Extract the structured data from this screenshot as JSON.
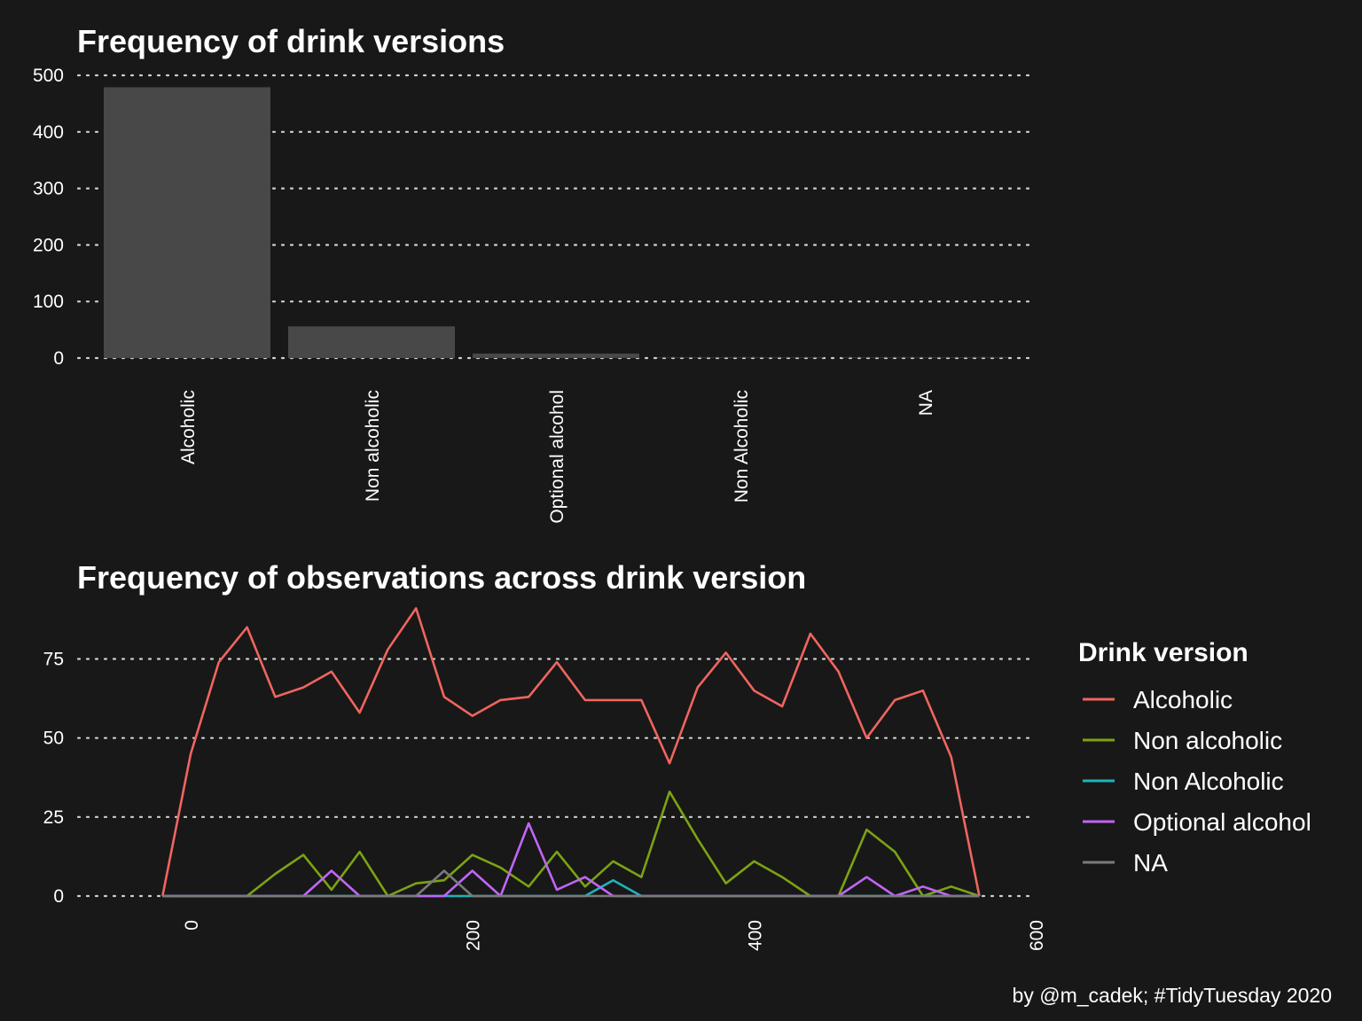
{
  "chart_data": [
    {
      "type": "bar",
      "title": "Frequency of drink versions",
      "categories": [
        "Alcoholic",
        "Non alcoholic",
        "Optional alcohol",
        "Non Alcoholic",
        "NA"
      ],
      "values": [
        479,
        56,
        8,
        1,
        1
      ],
      "ylim": [
        0,
        500
      ],
      "yticks": [
        0,
        100,
        200,
        300,
        400,
        500
      ],
      "grid": true,
      "bar_color": "#484848"
    },
    {
      "type": "line",
      "title": "Frequency of observations across drink version",
      "xlim": [
        -80,
        600
      ],
      "ylim": [
        0,
        90
      ],
      "xticks": [
        0,
        200,
        400,
        600
      ],
      "yticks": [
        0,
        25,
        50,
        75
      ],
      "grid": true,
      "legend": {
        "title": "Drink version",
        "placement": "right"
      },
      "x": [
        -20,
        0,
        20,
        40,
        60,
        80,
        100,
        120,
        140,
        160,
        180,
        200,
        220,
        240,
        260,
        280,
        300,
        320,
        340,
        360,
        380,
        400,
        420,
        440,
        460,
        480,
        500,
        520,
        540,
        560
      ],
      "series": [
        {
          "name": "Alcoholic",
          "color": "#f0655f",
          "values": [
            0,
            45,
            74,
            85,
            63,
            66,
            71,
            58,
            78,
            91,
            63,
            57,
            62,
            63,
            74,
            62,
            62,
            62,
            42,
            66,
            77,
            65,
            60,
            83,
            71,
            50,
            62,
            65,
            44,
            0
          ]
        },
        {
          "name": "Non alcoholic",
          "color": "#7ca312",
          "values": [
            0,
            0,
            0,
            0,
            7,
            13,
            2,
            14,
            0,
            4,
            5,
            13,
            9,
            3,
            14,
            3,
            11,
            6,
            33,
            18,
            4,
            11,
            6,
            0,
            0,
            21,
            14,
            0,
            3,
            0
          ]
        },
        {
          "name": "Non Alcoholic",
          "color": "#1fb3ba",
          "values": [
            0,
            0,
            0,
            0,
            0,
            0,
            0,
            0,
            0,
            0,
            0,
            0,
            0,
            0,
            0,
            0,
            5,
            0,
            0,
            0,
            0,
            0,
            0,
            0,
            0,
            0,
            0,
            0,
            0,
            0
          ]
        },
        {
          "name": "Optional alcohol",
          "color": "#c066f5",
          "values": [
            0,
            0,
            0,
            0,
            0,
            0,
            8,
            0,
            0,
            0,
            0,
            8,
            0,
            23,
            2,
            6,
            0,
            0,
            0,
            0,
            0,
            0,
            0,
            0,
            0,
            6,
            0,
            3,
            0,
            0
          ]
        },
        {
          "name": "NA",
          "color": "#7a7a7a",
          "values": [
            0,
            0,
            0,
            0,
            0,
            0,
            0,
            0,
            0,
            0,
            8,
            0,
            0,
            0,
            0,
            0,
            0,
            0,
            0,
            0,
            0,
            0,
            0,
            0,
            0,
            0,
            0,
            0,
            0,
            0
          ]
        }
      ]
    }
  ],
  "caption": "by @m_cadek; #TidyTuesday 2020"
}
